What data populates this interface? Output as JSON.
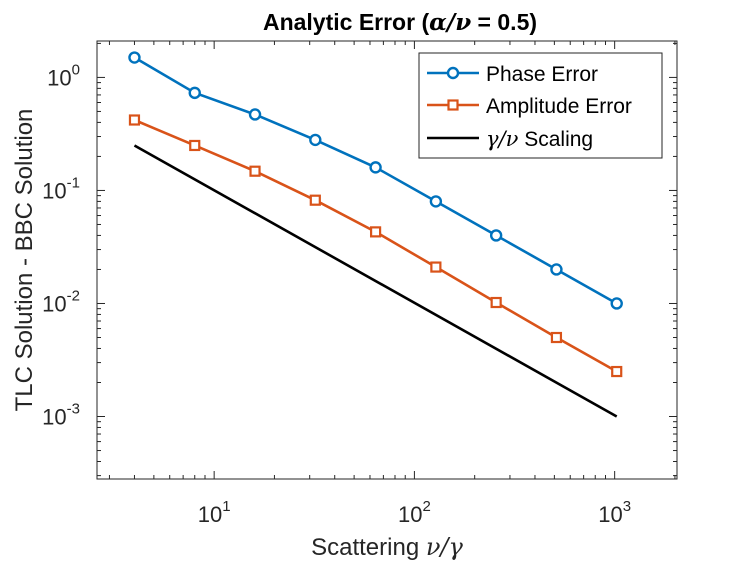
{
  "chart_data": {
    "type": "line",
    "title_prefix": "Analytic Error (",
    "title_math": "α/ν",
    "title_suffix": " = 0.5)",
    "xlabel_prefix": "Scattering ",
    "xlabel_math": "ν/γ",
    "ylabel": "TLC Solution - BBC Solution",
    "xscale": "log",
    "yscale": "log",
    "xlim": [
      2.6,
      2048
    ],
    "ylim": [
      0.00028,
      2.1
    ],
    "xticks": [
      {
        "value": 10,
        "base": "10",
        "exp": "1"
      },
      {
        "value": 100,
        "base": "10",
        "exp": "2"
      },
      {
        "value": 1000,
        "base": "10",
        "exp": "3"
      }
    ],
    "yticks": [
      {
        "value": 0.001,
        "base": "10",
        "exp": "-3"
      },
      {
        "value": 0.01,
        "base": "10",
        "exp": "-2"
      },
      {
        "value": 0.1,
        "base": "10",
        "exp": "-1"
      },
      {
        "value": 1,
        "base": "10",
        "exp": "0"
      }
    ],
    "grid": false,
    "legend_position": "top-right",
    "series": [
      {
        "name": "Phase Error",
        "color": "#0072BD",
        "marker": "circle",
        "x": [
          4,
          8,
          16,
          32,
          64,
          128,
          256,
          512,
          1024
        ],
        "y": [
          1.5,
          0.73,
          0.47,
          0.28,
          0.16,
          0.08,
          0.04,
          0.02,
          0.01
        ]
      },
      {
        "name": "Amplitude Error",
        "color": "#D95319",
        "marker": "square",
        "x": [
          4,
          8,
          16,
          32,
          64,
          128,
          256,
          512,
          1024
        ],
        "y": [
          0.42,
          0.25,
          0.148,
          0.082,
          0.043,
          0.021,
          0.0102,
          0.005,
          0.0025
        ]
      },
      {
        "name_math": "γ/ν",
        "name_suffix": " Scaling",
        "color": "#000000",
        "marker": "none",
        "x": [
          4,
          1024
        ],
        "y": [
          0.25,
          0.001
        ]
      }
    ]
  }
}
